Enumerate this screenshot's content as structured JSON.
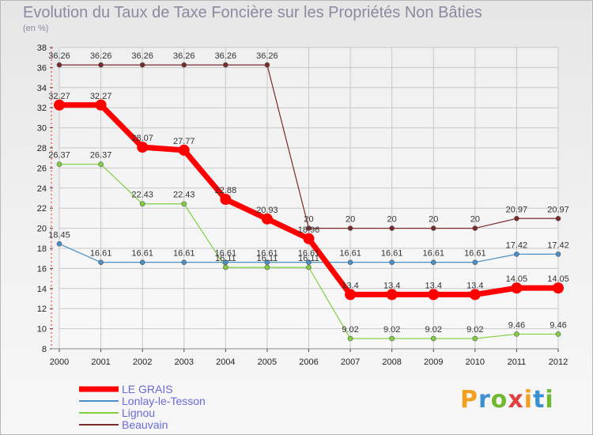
{
  "chart_data": {
    "type": "line",
    "title": "Evolution du Taux de Taxe Foncière sur les Propriétés Non Bâties",
    "subtitle": "(en %)",
    "xlabel": "",
    "ylabel": "",
    "x": [
      "2000",
      "2001",
      "2002",
      "2003",
      "2004",
      "2005",
      "2006",
      "2007",
      "2008",
      "2009",
      "2010",
      "2011",
      "2012"
    ],
    "ylim": [
      8,
      38
    ],
    "yticks": [
      8,
      10,
      12,
      14,
      16,
      18,
      20,
      22,
      24,
      26,
      28,
      30,
      32,
      34,
      36,
      38
    ],
    "grid": true,
    "legend_position": "bottom-left",
    "series": [
      {
        "name": "LE GRAIS",
        "color": "#ff0000",
        "values": [
          32.27,
          32.27,
          28.07,
          27.77,
          22.88,
          20.93,
          18.96,
          13.4,
          13.4,
          13.4,
          13.4,
          14.05,
          14.05
        ],
        "labels": [
          "32.27",
          "32.27",
          "28.07",
          "27.77",
          "22.88",
          "20.93",
          "18.96",
          "13.4",
          "13.4",
          "13.4",
          "13.4",
          "14.05",
          "14.05"
        ]
      },
      {
        "name": "Lonlay-le-Tesson",
        "color": "#4a90c8",
        "values": [
          18.45,
          16.61,
          16.61,
          16.61,
          16.61,
          16.61,
          16.61,
          16.61,
          16.61,
          16.61,
          16.61,
          17.42,
          17.42
        ],
        "labels": [
          "18.45",
          "16.61",
          "16.61",
          "16.61",
          "16.61",
          "16.61",
          "16.61",
          "16.61",
          "16.61",
          "16.61",
          "16.61",
          "17.42",
          "17.42"
        ]
      },
      {
        "name": "Lignou",
        "color": "#80d040",
        "values": [
          26.37,
          26.37,
          22.43,
          22.43,
          16.11,
          16.11,
          16.11,
          9.02,
          9.02,
          9.02,
          9.02,
          9.46,
          9.46
        ],
        "labels": [
          "26.37",
          "26.37",
          "22.43",
          "22.43",
          "16.11",
          "16.11",
          "16.11",
          "9.02",
          "9.02",
          "9.02",
          "9.02",
          "9.46",
          "9.46"
        ]
      },
      {
        "name": "Beauvain",
        "color": "#7a2a2a",
        "values": [
          36.26,
          36.26,
          36.26,
          36.26,
          36.26,
          36.26,
          20,
          20,
          20,
          20,
          20,
          20.97,
          20.97
        ],
        "labels": [
          "36.26",
          "36.26",
          "36.26",
          "36.26",
          "36.26",
          "36.26",
          "20",
          "20",
          "20",
          "20",
          "20",
          "20.97",
          "20.97"
        ]
      }
    ]
  },
  "logo": {
    "text": "Proxiti",
    "colors": [
      "#f2a020",
      "#3a90d0",
      "#70b830",
      "#e04040",
      "#f2a020",
      "#3a90d0",
      "#70b830"
    ]
  }
}
